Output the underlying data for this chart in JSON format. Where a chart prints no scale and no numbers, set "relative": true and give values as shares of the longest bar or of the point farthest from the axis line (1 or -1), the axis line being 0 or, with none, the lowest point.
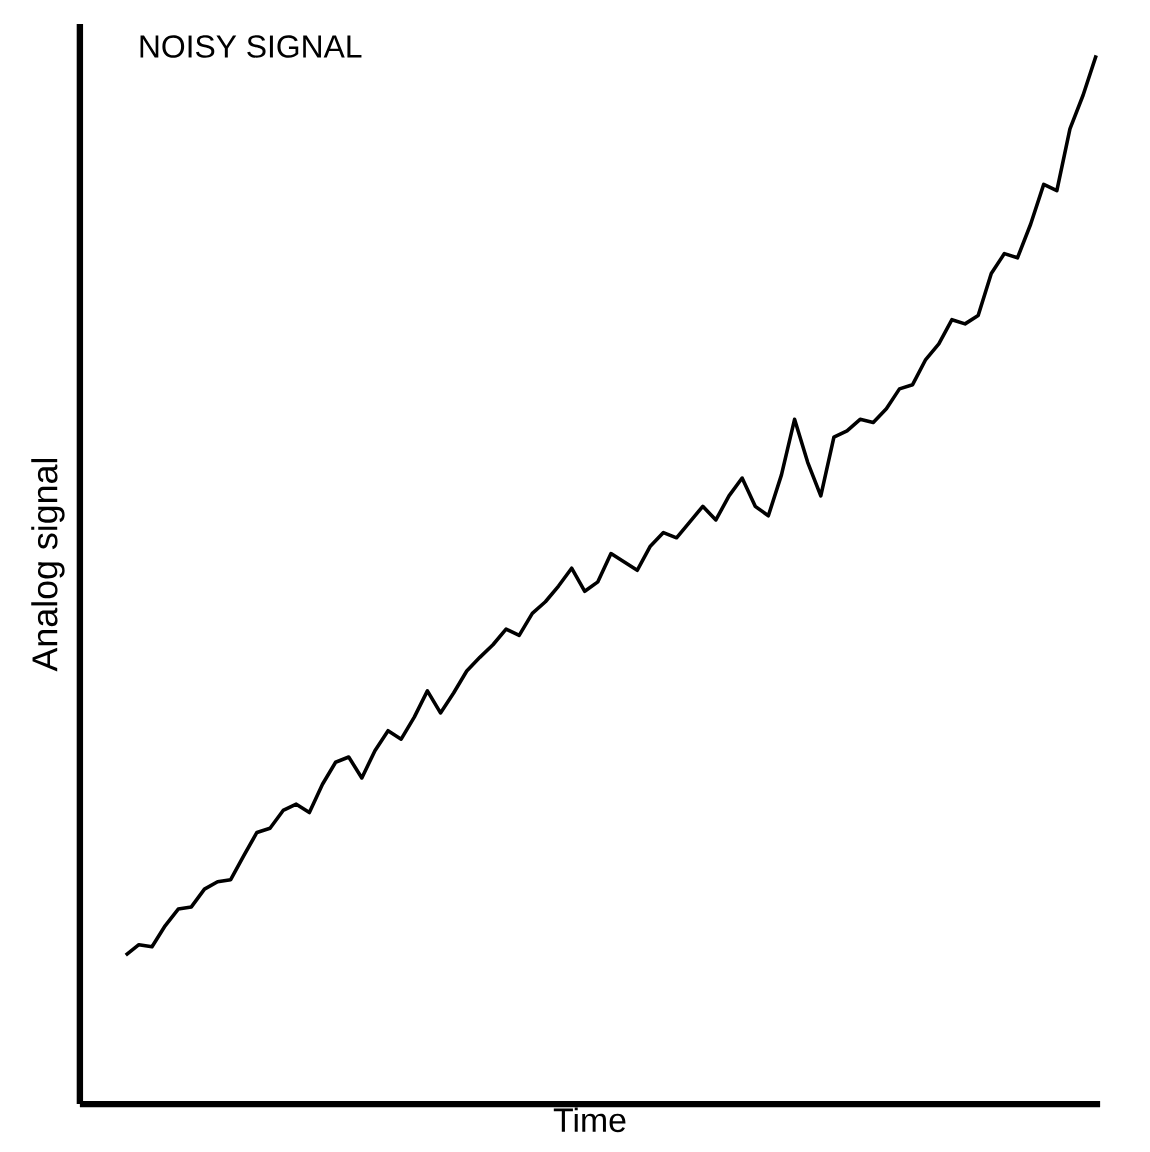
{
  "chart_data": {
    "type": "line",
    "title": "NOISY SIGNAL",
    "xlabel": "Time",
    "ylabel": "Analog signal",
    "relative": true,
    "color": "#000000",
    "categories": [
      null,
      null,
      null,
      null,
      null,
      null,
      null,
      null,
      null,
      null,
      null,
      null,
      null,
      null,
      null,
      null,
      null,
      null,
      null,
      null,
      null,
      null,
      null,
      null,
      null,
      null,
      null,
      null,
      null,
      null,
      null,
      null,
      null,
      null,
      null,
      null,
      null,
      null,
      null,
      null,
      null,
      null,
      null,
      null,
      null,
      null,
      null,
      null,
      null,
      null,
      null,
      null,
      null,
      null,
      null,
      null,
      null,
      null,
      null,
      null,
      null,
      null,
      null,
      null,
      null,
      null,
      null,
      null,
      null,
      null,
      null,
      null,
      null,
      null,
      null
    ],
    "values": [
      0.142,
      0.152,
      0.15,
      0.17,
      0.186,
      0.188,
      0.205,
      0.212,
      0.214,
      0.237,
      0.259,
      0.263,
      0.28,
      0.286,
      0.278,
      0.305,
      0.326,
      0.331,
      0.311,
      0.337,
      0.356,
      0.348,
      0.369,
      0.394,
      0.373,
      0.392,
      0.413,
      0.426,
      0.438,
      0.453,
      0.447,
      0.468,
      0.479,
      0.494,
      0.511,
      0.489,
      0.498,
      0.525,
      0.517,
      0.509,
      0.532,
      0.545,
      0.54,
      0.555,
      0.57,
      0.557,
      0.58,
      0.597,
      0.57,
      0.561,
      0.6,
      0.653,
      0.612,
      0.58,
      0.636,
      0.642,
      0.653,
      0.65,
      0.663,
      0.682,
      0.686,
      0.71,
      0.725,
      0.748,
      0.744,
      0.752,
      0.792,
      0.811,
      0.807,
      0.839,
      0.877,
      0.871,
      0.93,
      0.962,
      1
    ]
  }
}
